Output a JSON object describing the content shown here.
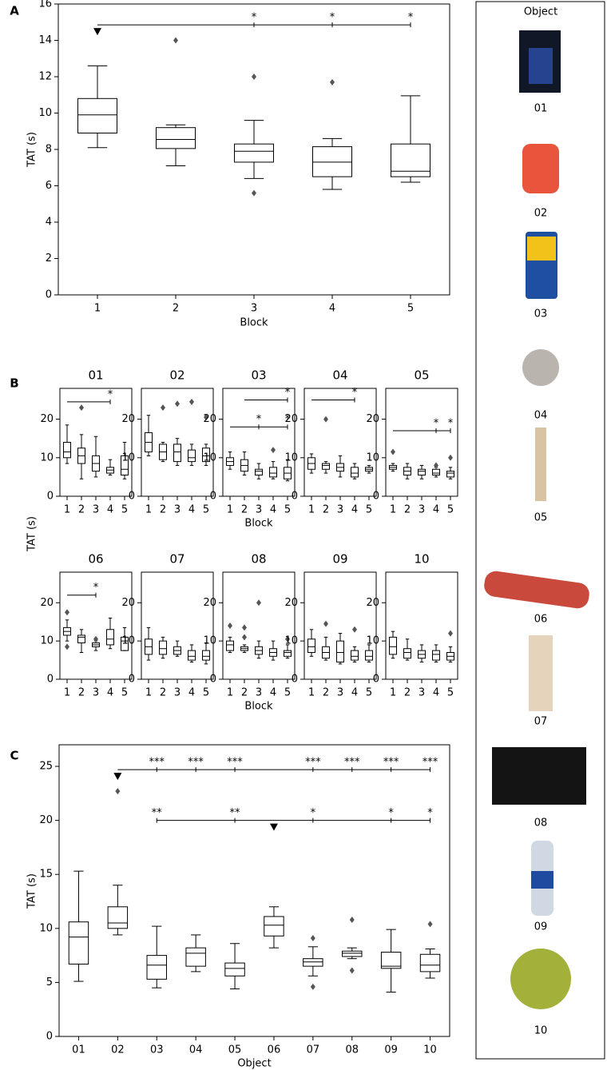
{
  "chart_data": [
    {
      "type": "box",
      "panel": "A",
      "xlabel": "Block",
      "ylabel": "TAT (s)",
      "categories": [
        "1",
        "2",
        "3",
        "4",
        "5"
      ],
      "ylim": [
        0,
        16
      ],
      "yticks": [
        0,
        2,
        4,
        6,
        8,
        10,
        12,
        14,
        16
      ],
      "boxes": [
        {
          "whislo": 8.1,
          "q1": 8.9,
          "med": 9.9,
          "q3": 10.8,
          "whishi": 12.6
        },
        {
          "whislo": 7.1,
          "q1": 8.05,
          "med": 8.55,
          "q3": 9.2,
          "whishi": 9.35,
          "fliers": [
            14.0
          ]
        },
        {
          "whislo": 6.4,
          "q1": 7.3,
          "med": 7.9,
          "q3": 8.3,
          "whishi": 9.6,
          "fliers": [
            12.0,
            5.6
          ]
        },
        {
          "whislo": 5.8,
          "q1": 6.5,
          "med": 7.3,
          "q3": 8.15,
          "whishi": 8.6,
          "fliers": [
            11.7
          ]
        },
        {
          "whislo": 6.2,
          "q1": 6.5,
          "med": 6.8,
          "q3": 8.3,
          "whishi": 10.95
        }
      ],
      "brackets": [
        {
          "from": "1",
          "to": "5",
          "ref": "1",
          "y": 14.85,
          "marks": [
            {
              "at": "3",
              "label": "*"
            },
            {
              "at": "4",
              "label": "*"
            },
            {
              "at": "5",
              "label": "*"
            }
          ]
        }
      ]
    },
    {
      "type": "box",
      "panel": "B",
      "ylabel": "TAT (s)",
      "title": "01",
      "categories": [
        "1",
        "2",
        "3",
        "4",
        "5"
      ],
      "ylim": [
        0,
        28
      ],
      "yticks": [
        0,
        10,
        20
      ],
      "boxes": [
        {
          "whislo": 8.5,
          "q1": 10,
          "med": 11.5,
          "q3": 14,
          "whishi": 18.5
        },
        {
          "whislo": 4.5,
          "q1": 8.5,
          "med": 10.5,
          "q3": 12.5,
          "whishi": 16,
          "fliers": [
            23
          ]
        },
        {
          "whislo": 5,
          "q1": 6.5,
          "med": 8.5,
          "q3": 10.5,
          "whishi": 15.5
        },
        {
          "whislo": 5.5,
          "q1": 6,
          "med": 6.8,
          "q3": 7.5,
          "whishi": 9.5
        },
        {
          "whislo": 4.5,
          "q1": 5.5,
          "med": 7,
          "q3": 10.5,
          "whishi": 14
        }
      ],
      "brackets": [
        {
          "from": "1",
          "to": "4",
          "y": 24.5,
          "marks": [
            {
              "at": "4",
              "label": "*"
            }
          ]
        }
      ]
    },
    {
      "type": "box",
      "title": "02",
      "categories": [
        "1",
        "2",
        "3",
        "4",
        "5"
      ],
      "ylim": [
        0,
        28
      ],
      "yticks": [
        0,
        10,
        20
      ],
      "boxes": [
        {
          "whislo": 10.5,
          "q1": 11.5,
          "med": 14,
          "q3": 16.5,
          "whishi": 21
        },
        {
          "whislo": 9,
          "q1": 9.5,
          "med": 11.5,
          "q3": 13.5,
          "whishi": 14,
          "fliers": [
            23
          ]
        },
        {
          "whislo": 8,
          "q1": 9,
          "med": 11.5,
          "q3": 13.5,
          "whishi": 15,
          "fliers": [
            24
          ]
        },
        {
          "whislo": 8,
          "q1": 9,
          "med": 10,
          "q3": 12,
          "whishi": 13.5,
          "fliers": [
            24.5
          ]
        },
        {
          "whislo": 8,
          "q1": 9,
          "med": 10.5,
          "q3": 12.5,
          "whishi": 13.5,
          "fliers": [
            20.5
          ]
        }
      ]
    },
    {
      "type": "box",
      "title": "03",
      "xlabel": "Block",
      "categories": [
        "1",
        "2",
        "3",
        "4",
        "5"
      ],
      "ylim": [
        0,
        28
      ],
      "yticks": [
        0,
        10,
        20
      ],
      "boxes": [
        {
          "whislo": 7,
          "q1": 8,
          "med": 9,
          "q3": 10,
          "whishi": 11.5
        },
        {
          "whislo": 5.5,
          "q1": 6.5,
          "med": 8,
          "q3": 9.5,
          "whishi": 11.5
        },
        {
          "whislo": 4.5,
          "q1": 5.5,
          "med": 6.5,
          "q3": 7,
          "whishi": 8.5
        },
        {
          "whislo": 4.5,
          "q1": 5,
          "med": 6,
          "q3": 7.5,
          "whishi": 9,
          "fliers": [
            12
          ]
        },
        {
          "whislo": 4,
          "q1": 4.5,
          "med": 6,
          "q3": 7.5,
          "whishi": 9.5
        }
      ],
      "brackets": [
        {
          "from": "2",
          "to": "5",
          "y": 25,
          "marks": [
            {
              "at": "5",
              "label": "*"
            }
          ]
        },
        {
          "from": "1",
          "to": "5",
          "y": 18,
          "marks": [
            {
              "at": "3",
              "label": "*"
            },
            {
              "at": "5",
              "label": "*"
            }
          ]
        }
      ]
    },
    {
      "type": "box",
      "title": "04",
      "categories": [
        "1",
        "2",
        "3",
        "4",
        "5"
      ],
      "ylim": [
        0,
        28
      ],
      "yticks": [
        0,
        10,
        20
      ],
      "boxes": [
        {
          "whislo": 6,
          "q1": 7,
          "med": 8.5,
          "q3": 10,
          "whishi": 11
        },
        {
          "whislo": 6,
          "q1": 7,
          "med": 8,
          "q3": 8.5,
          "whishi": 9,
          "fliers": [
            20
          ]
        },
        {
          "whislo": 5,
          "q1": 6.5,
          "med": 7.5,
          "q3": 8.5,
          "whishi": 10.5
        },
        {
          "whislo": 4.5,
          "q1": 5,
          "med": 6,
          "q3": 7.5,
          "whishi": 8.5
        },
        {
          "whislo": 6,
          "q1": 6.5,
          "med": 7,
          "q3": 7.5,
          "whishi": 8
        }
      ],
      "brackets": [
        {
          "from": "1",
          "to": "4",
          "y": 25,
          "marks": [
            {
              "at": "4",
              "label": "*"
            }
          ]
        }
      ]
    },
    {
      "type": "box",
      "title": "05",
      "categories": [
        "1",
        "2",
        "3",
        "4",
        "5"
      ],
      "ylim": [
        0,
        28
      ],
      "yticks": [
        0,
        10,
        20
      ],
      "boxes": [
        {
          "whislo": 6.5,
          "q1": 7,
          "med": 7.5,
          "q3": 8,
          "whishi": 8.5,
          "fliers": [
            11.5
          ]
        },
        {
          "whislo": 4.5,
          "q1": 5.5,
          "med": 6.5,
          "q3": 7.5,
          "whishi": 8.5
        },
        {
          "whislo": 4.5,
          "q1": 5.5,
          "med": 6.5,
          "q3": 7,
          "whishi": 8
        },
        {
          "whislo": 5,
          "q1": 5.5,
          "med": 6,
          "q3": 7,
          "whishi": 7.5,
          "fliers": [
            8
          ]
        },
        {
          "whislo": 4.5,
          "q1": 5,
          "med": 6,
          "q3": 6.5,
          "whishi": 7.5,
          "fliers": [
            10
          ]
        }
      ],
      "brackets": [
        {
          "from": "1",
          "to": "5",
          "y": 17,
          "marks": [
            {
              "at": "4",
              "label": "*"
            },
            {
              "at": "5",
              "label": "*"
            }
          ]
        }
      ]
    },
    {
      "type": "box",
      "title": "06",
      "categories": [
        "1",
        "2",
        "3",
        "4",
        "5"
      ],
      "ylim": [
        0,
        28
      ],
      "yticks": [
        0,
        10,
        20
      ],
      "boxes": [
        {
          "whislo": 10,
          "q1": 11.5,
          "med": 12.5,
          "q3": 13.5,
          "whishi": 15.5,
          "fliers": [
            17.5,
            8.5
          ]
        },
        {
          "whislo": 7,
          "q1": 9.5,
          "med": 11,
          "q3": 11.5,
          "whishi": 13
        },
        {
          "whislo": 7.5,
          "q1": 8.5,
          "med": 9,
          "q3": 9.5,
          "whishi": 10,
          "fliers": [
            10.5
          ]
        },
        {
          "whislo": 8,
          "q1": 9,
          "med": 10.5,
          "q3": 13,
          "whishi": 16
        },
        {
          "whislo": 7.5,
          "q1": 7.5,
          "med": 10,
          "q3": 11,
          "whishi": 13.5
        }
      ],
      "brackets": [
        {
          "from": "1",
          "to": "3",
          "y": 22,
          "marks": [
            {
              "at": "3",
              "label": "*"
            }
          ]
        }
      ]
    },
    {
      "type": "box",
      "title": "07",
      "categories": [
        "1",
        "2",
        "3",
        "4",
        "5"
      ],
      "ylim": [
        0,
        28
      ],
      "yticks": [
        0,
        10,
        20
      ],
      "boxes": [
        {
          "whislo": 5,
          "q1": 6.5,
          "med": 8.5,
          "q3": 10.5,
          "whishi": 13.5
        },
        {
          "whislo": 5.5,
          "q1": 6.5,
          "med": 8,
          "q3": 10,
          "whishi": 11
        },
        {
          "whislo": 6,
          "q1": 6.5,
          "med": 7.5,
          "q3": 8.5,
          "whishi": 10
        },
        {
          "whislo": 4.5,
          "q1": 5,
          "med": 6,
          "q3": 7.5,
          "whishi": 9
        },
        {
          "whislo": 4,
          "q1": 5,
          "med": 6,
          "q3": 7.5,
          "whishi": 9.5
        }
      ]
    },
    {
      "type": "box",
      "title": "08",
      "xlabel": "Block",
      "categories": [
        "1",
        "2",
        "3",
        "4",
        "5"
      ],
      "ylim": [
        0,
        28
      ],
      "yticks": [
        0,
        10,
        20
      ],
      "boxes": [
        {
          "whislo": 7,
          "q1": 7.5,
          "med": 9,
          "q3": 10,
          "whishi": 11,
          "fliers": [
            14
          ]
        },
        {
          "whislo": 7,
          "q1": 7.5,
          "med": 8,
          "q3": 8.5,
          "whishi": 9,
          "fliers": [
            13.5,
            11
          ]
        },
        {
          "whislo": 5.5,
          "q1": 6.5,
          "med": 7.5,
          "q3": 8.5,
          "whishi": 10,
          "fliers": [
            20
          ]
        },
        {
          "whislo": 5,
          "q1": 6,
          "med": 7,
          "q3": 8,
          "whishi": 10
        },
        {
          "whislo": 5.5,
          "q1": 6,
          "med": 7,
          "q3": 7.5,
          "whishi": 9,
          "fliers": [
            10.5
          ]
        }
      ]
    },
    {
      "type": "box",
      "title": "09",
      "categories": [
        "1",
        "2",
        "3",
        "4",
        "5"
      ],
      "ylim": [
        0,
        28
      ],
      "yticks": [
        0,
        10,
        20
      ],
      "boxes": [
        {
          "whislo": 6,
          "q1": 7,
          "med": 8.5,
          "q3": 10.5,
          "whishi": 13
        },
        {
          "whislo": 5,
          "q1": 5.5,
          "med": 7,
          "q3": 8.5,
          "whishi": 11,
          "fliers": [
            14.5
          ]
        },
        {
          "whislo": 4,
          "q1": 4.5,
          "med": 7,
          "q3": 10,
          "whishi": 12
        },
        {
          "whislo": 4.5,
          "q1": 5,
          "med": 6,
          "q3": 7.5,
          "whishi": 8.5,
          "fliers": [
            13
          ]
        },
        {
          "whislo": 4.5,
          "q1": 5,
          "med": 6,
          "q3": 7.5,
          "whishi": 9
        }
      ]
    },
    {
      "type": "box",
      "title": "10",
      "categories": [
        "1",
        "2",
        "3",
        "4",
        "5"
      ],
      "ylim": [
        0,
        28
      ],
      "yticks": [
        0,
        10,
        20
      ],
      "boxes": [
        {
          "whislo": 5.5,
          "q1": 6.5,
          "med": 8.5,
          "q3": 11,
          "whishi": 12.5
        },
        {
          "whislo": 5,
          "q1": 5.5,
          "med": 7,
          "q3": 8,
          "whishi": 10.5
        },
        {
          "whislo": 4.5,
          "q1": 5.5,
          "med": 6.5,
          "q3": 7.5,
          "whishi": 9
        },
        {
          "whislo": 4.5,
          "q1": 5,
          "med": 6.5,
          "q3": 7.5,
          "whishi": 9
        },
        {
          "whislo": 4.5,
          "q1": 5,
          "med": 6,
          "q3": 7,
          "whishi": 8.5,
          "fliers": [
            12
          ]
        }
      ]
    },
    {
      "type": "box",
      "panel": "C",
      "xlabel": "Object",
      "ylabel": "TAT (s)",
      "categories": [
        "01",
        "02",
        "03",
        "04",
        "05",
        "06",
        "07",
        "08",
        "09",
        "10"
      ],
      "ylim": [
        0,
        27
      ],
      "yticks": [
        0,
        5,
        10,
        15,
        20,
        25
      ],
      "boxes": [
        {
          "whislo": 5.1,
          "q1": 6.7,
          "med": 9.2,
          "q3": 10.6,
          "whishi": 15.3
        },
        {
          "whislo": 9.4,
          "q1": 10.0,
          "med": 10.5,
          "q3": 12.0,
          "whishi": 14.0,
          "fliers": [
            22.7
          ]
        },
        {
          "whislo": 4.5,
          "q1": 5.3,
          "med": 6.6,
          "q3": 7.5,
          "whishi": 10.2
        },
        {
          "whislo": 6.0,
          "q1": 6.5,
          "med": 7.7,
          "q3": 8.2,
          "whishi": 9.4
        },
        {
          "whislo": 4.4,
          "q1": 5.6,
          "med": 6.3,
          "q3": 6.8,
          "whishi": 8.6
        },
        {
          "whislo": 8.2,
          "q1": 9.3,
          "med": 10.3,
          "q3": 11.1,
          "whishi": 12.0
        },
        {
          "whislo": 5.6,
          "q1": 6.5,
          "med": 6.9,
          "q3": 7.2,
          "whishi": 8.3,
          "fliers": [
            9.1,
            4.6
          ]
        },
        {
          "whislo": 7.2,
          "q1": 7.4,
          "med": 7.7,
          "q3": 7.9,
          "whishi": 8.2,
          "fliers": [
            10.8,
            6.1
          ]
        },
        {
          "whislo": 4.1,
          "q1": 6.3,
          "med": 6.5,
          "q3": 7.8,
          "whishi": 9.9
        },
        {
          "whislo": 5.4,
          "q1": 6.0,
          "med": 6.6,
          "q3": 7.6,
          "whishi": 8.1,
          "fliers": [
            10.4
          ]
        }
      ],
      "brackets": [
        {
          "from": "02",
          "to": "10",
          "ref": "02",
          "y": 24.7,
          "marks": [
            {
              "at": "03",
              "label": "***"
            },
            {
              "at": "04",
              "label": "***"
            },
            {
              "at": "05",
              "label": "***"
            },
            {
              "at": "07",
              "label": "***"
            },
            {
              "at": "08",
              "label": "***"
            },
            {
              "at": "09",
              "label": "***"
            },
            {
              "at": "10",
              "label": "***"
            }
          ]
        },
        {
          "from": "03",
          "to": "10",
          "ref": "06",
          "y": 20,
          "marks": [
            {
              "at": "03",
              "label": "**"
            },
            {
              "at": "05",
              "label": "**"
            },
            {
              "at": "07",
              "label": "*"
            },
            {
              "at": "09",
              "label": "*"
            },
            {
              "at": "10",
              "label": "*"
            }
          ]
        }
      ]
    }
  ],
  "objects_panel": {
    "title": "Object",
    "items": [
      "01",
      "02",
      "03",
      "04",
      "05",
      "06",
      "07",
      "08",
      "09",
      "10"
    ]
  }
}
